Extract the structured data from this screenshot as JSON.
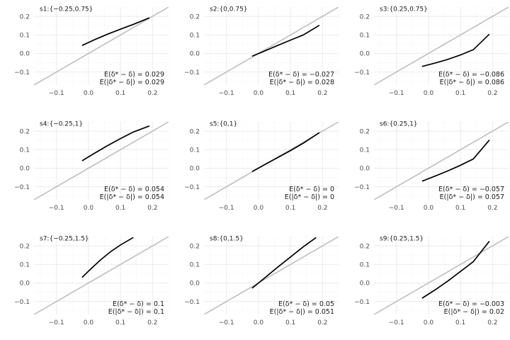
{
  "chart_data": [
    {
      "type": "line",
      "title": "s1:{−0.25,0.75}",
      "xlim": [
        -0.17,
        0.25
      ],
      "ylim": [
        -0.17,
        0.25
      ],
      "x_ticks": [
        -0.1,
        0.0,
        0.1,
        0.2
      ],
      "x_tick_labels": [
        "−0.1",
        "0.0",
        "0.1",
        "0.2"
      ],
      "y_ticks": [
        -0.1,
        0.0,
        0.1,
        0.2
      ],
      "y_tick_labels": [
        "−0.1",
        "0.0",
        "0.1",
        "0.2"
      ],
      "reference_line": "y = x",
      "grid": true,
      "series": [
        {
          "x": [
            -0.02,
            0.02,
            0.06,
            0.1,
            0.14,
            0.19
          ],
          "y": [
            0.043,
            0.075,
            0.104,
            0.131,
            0.157,
            0.192
          ]
        }
      ],
      "annotations": [
        "E(δ* − δ) = 0.029",
        "E(|δ* − δ|) = 0.029"
      ]
    },
    {
      "type": "line",
      "title": "s2:{0,0.75}",
      "xlim": [
        -0.17,
        0.25
      ],
      "ylim": [
        -0.17,
        0.25
      ],
      "x_ticks": [
        -0.1,
        0.0,
        0.1,
        0.2
      ],
      "x_tick_labels": [
        "−0.1",
        "0.0",
        "0.1",
        "0.2"
      ],
      "y_ticks": [
        -0.1,
        0.0,
        0.1,
        0.2
      ],
      "y_tick_labels": [
        "−0.1",
        "0.0",
        "0.1",
        "0.2"
      ],
      "reference_line": "y = x",
      "grid": true,
      "series": [
        {
          "x": [
            -0.02,
            0.02,
            0.06,
            0.1,
            0.14,
            0.19
          ],
          "y": [
            -0.015,
            0.014,
            0.043,
            0.072,
            0.1,
            0.152
          ]
        }
      ],
      "annotations": [
        "E(δ* − δ) = −0.027",
        "E(|δ* − δ|) = 0.028"
      ]
    },
    {
      "type": "line",
      "title": "s3:{0.25,0.75}",
      "xlim": [
        -0.17,
        0.25
      ],
      "ylim": [
        -0.17,
        0.25
      ],
      "x_ticks": [
        -0.1,
        0.0,
        0.1,
        0.2
      ],
      "x_tick_labels": [
        "−0.1",
        "0.0",
        "0.1",
        "0.2"
      ],
      "y_ticks": [
        -0.1,
        0.0,
        0.1,
        0.2
      ],
      "y_tick_labels": [
        "−0.1",
        "0.0",
        "0.1",
        "0.2"
      ],
      "reference_line": "y = x",
      "grid": true,
      "series": [
        {
          "x": [
            -0.02,
            0.02,
            0.06,
            0.1,
            0.14,
            0.19
          ],
          "y": [
            -0.07,
            -0.052,
            -0.032,
            -0.008,
            0.02,
            0.104
          ]
        }
      ],
      "annotations": [
        "E(δ* − δ) = −0.086",
        "E(|δ* − δ|) = 0.086"
      ]
    },
    {
      "type": "line",
      "title": "s4:{−0.25,1}",
      "xlim": [
        -0.17,
        0.25
      ],
      "ylim": [
        -0.17,
        0.25
      ],
      "x_ticks": [
        -0.1,
        0.0,
        0.1,
        0.2
      ],
      "x_tick_labels": [
        "−0.1",
        "0.0",
        "0.1",
        "0.2"
      ],
      "y_ticks": [
        -0.1,
        0.0,
        0.1,
        0.2
      ],
      "y_tick_labels": [
        "−0.1",
        "0.0",
        "0.1",
        "0.2"
      ],
      "reference_line": "y = x",
      "grid": true,
      "series": [
        {
          "x": [
            -0.02,
            0.02,
            0.06,
            0.1,
            0.14,
            0.19
          ],
          "y": [
            0.04,
            0.082,
            0.122,
            0.16,
            0.195,
            0.228
          ]
        }
      ],
      "annotations": [
        "E(δ* − δ) = 0.054",
        "E(|δ* − δ|) = 0.054"
      ]
    },
    {
      "type": "line",
      "title": "s5:{0,1}",
      "xlim": [
        -0.17,
        0.25
      ],
      "ylim": [
        -0.17,
        0.25
      ],
      "x_ticks": [
        -0.1,
        0.0,
        0.1,
        0.2
      ],
      "x_tick_labels": [
        "−0.1",
        "0.0",
        "0.1",
        "0.2"
      ],
      "y_ticks": [
        -0.1,
        0.0,
        0.1,
        0.2
      ],
      "y_tick_labels": [
        "−0.1",
        "0.0",
        "0.1",
        "0.2"
      ],
      "reference_line": "y = x",
      "grid": true,
      "series": [
        {
          "x": [
            -0.02,
            0.02,
            0.06,
            0.1,
            0.14,
            0.19
          ],
          "y": [
            -0.018,
            0.02,
            0.057,
            0.095,
            0.135,
            0.192
          ]
        }
      ],
      "annotations": [
        "E(δ* − δ) = 0",
        "E(|δ* − δ|) = 0"
      ]
    },
    {
      "type": "line",
      "title": "s6:{0.25,1}",
      "xlim": [
        -0.17,
        0.25
      ],
      "ylim": [
        -0.17,
        0.25
      ],
      "x_ticks": [
        -0.1,
        0.0,
        0.1,
        0.2
      ],
      "x_tick_labels": [
        "−0.1",
        "0.0",
        "0.1",
        "0.2"
      ],
      "y_ticks": [
        -0.1,
        0.0,
        0.1,
        0.2
      ],
      "y_tick_labels": [
        "−0.1",
        "0.0",
        "0.1",
        "0.2"
      ],
      "reference_line": "y = x",
      "grid": true,
      "series": [
        {
          "x": [
            -0.02,
            0.02,
            0.06,
            0.1,
            0.14,
            0.19
          ],
          "y": [
            -0.07,
            -0.043,
            -0.015,
            0.016,
            0.05,
            0.152
          ]
        }
      ],
      "annotations": [
        "E(δ* − δ) = −0.057",
        "E(|δ* − δ|) = 0.057"
      ]
    },
    {
      "type": "line",
      "title": "s7:{−0.25,1.5}",
      "xlim": [
        -0.17,
        0.25
      ],
      "ylim": [
        -0.17,
        0.25
      ],
      "x_ticks": [
        -0.1,
        0.0,
        0.1,
        0.2
      ],
      "x_tick_labels": [
        "−0.1",
        "0.0",
        "0.1",
        "0.2"
      ],
      "y_ticks": [
        -0.1,
        0.0,
        0.1,
        0.2
      ],
      "y_tick_labels": [
        "−0.1",
        "0.0",
        "0.1",
        "0.2"
      ],
      "reference_line": "y = x",
      "grid": true,
      "series": [
        {
          "x": [
            -0.02,
            0.01,
            0.04,
            0.07,
            0.1,
            0.14
          ],
          "y": [
            0.03,
            0.08,
            0.128,
            0.17,
            0.205,
            0.245
          ]
        }
      ],
      "annotations": [
        "E(δ* − δ) = 0.1",
        "E(|δ* − δ|) = 0.1"
      ]
    },
    {
      "type": "line",
      "title": "s8:{0,1.5}",
      "xlim": [
        -0.17,
        0.25
      ],
      "ylim": [
        -0.17,
        0.25
      ],
      "x_ticks": [
        -0.1,
        0.0,
        0.1,
        0.2
      ],
      "x_tick_labels": [
        "−0.1",
        "0.0",
        "0.1",
        "0.2"
      ],
      "y_ticks": [
        -0.1,
        0.0,
        0.1,
        0.2
      ],
      "y_tick_labels": [
        "−0.1",
        "0.0",
        "0.1",
        "0.2"
      ],
      "reference_line": "y = x",
      "grid": true,
      "series": [
        {
          "x": [
            -0.02,
            0.02,
            0.06,
            0.1,
            0.14,
            0.18
          ],
          "y": [
            -0.028,
            0.028,
            0.085,
            0.14,
            0.195,
            0.245
          ]
        }
      ],
      "annotations": [
        "E(δ* − δ) = 0.05",
        "E(|δ* − δ|) = 0.051"
      ]
    },
    {
      "type": "line",
      "title": "s9:{0.25,1.5}",
      "xlim": [
        -0.17,
        0.25
      ],
      "ylim": [
        -0.17,
        0.25
      ],
      "x_ticks": [
        -0.1,
        0.0,
        0.1,
        0.2
      ],
      "x_tick_labels": [
        "−0.1",
        "0.0",
        "0.1",
        "0.2"
      ],
      "y_ticks": [
        -0.1,
        0.0,
        0.1,
        0.2
      ],
      "y_tick_labels": [
        "−0.1",
        "0.0",
        "0.1",
        "0.2"
      ],
      "reference_line": "y = x",
      "grid": true,
      "series": [
        {
          "x": [
            -0.02,
            0.02,
            0.06,
            0.1,
            0.14,
            0.19
          ],
          "y": [
            -0.082,
            -0.038,
            0.01,
            0.062,
            0.115,
            0.225
          ]
        }
      ],
      "annotations": [
        "E(δ* − δ) = −0.003",
        "E(|δ* − δ|) = 0.02"
      ]
    }
  ]
}
